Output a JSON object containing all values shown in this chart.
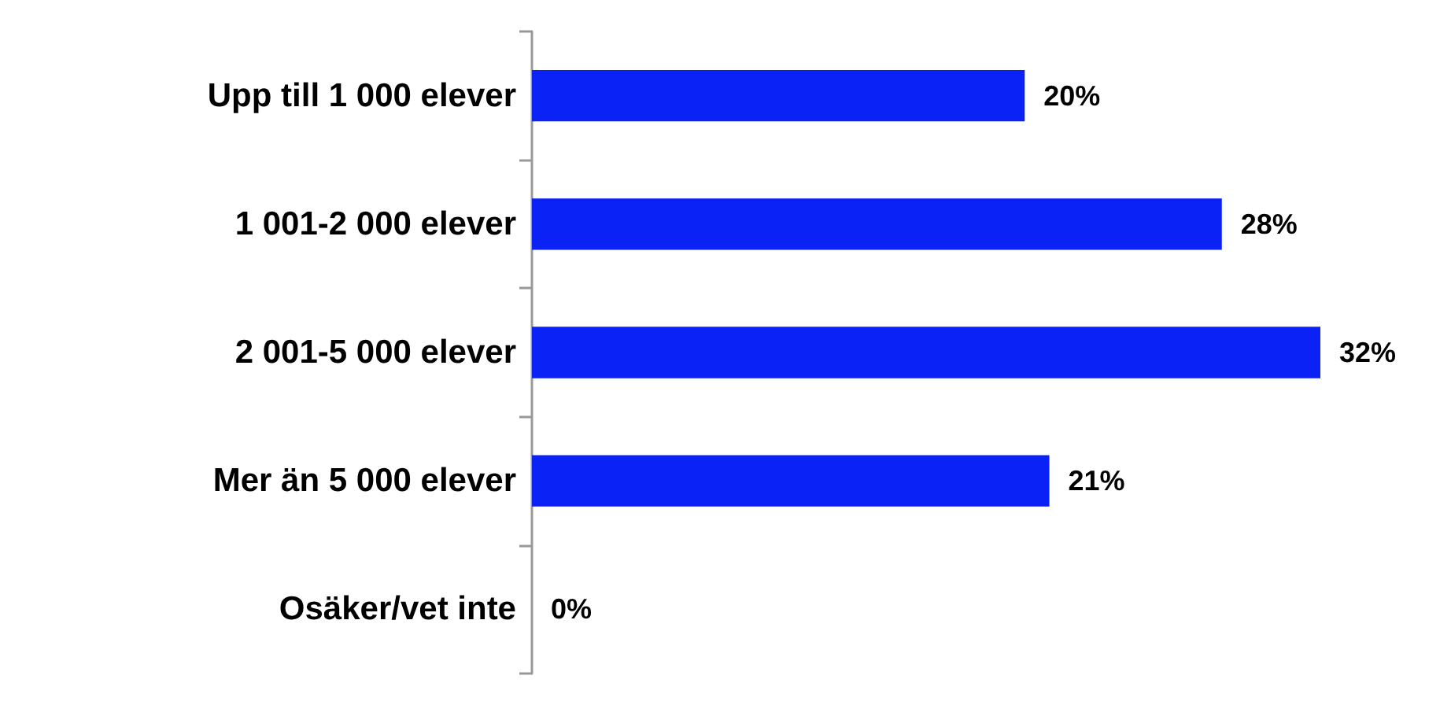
{
  "chart_data": {
    "type": "bar",
    "orientation": "horizontal",
    "categories": [
      "Upp till 1 000 elever",
      "1 001-2 000 elever",
      "2 001-5 000 elever",
      "Mer än 5 000 elever",
      "Osäker/vet inte"
    ],
    "values": [
      20,
      28,
      32,
      21,
      0
    ],
    "value_labels": [
      "20%",
      "28%",
      "32%",
      "21%",
      "0%"
    ],
    "color": "#0a22f5"
  }
}
